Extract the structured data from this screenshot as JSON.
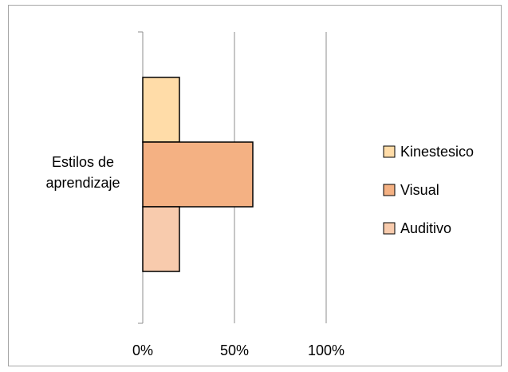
{
  "chart_data": {
    "type": "bar",
    "orientation": "horizontal",
    "categories": [
      "Estilos de aprendizaje"
    ],
    "series": [
      {
        "name": "Kinestesico",
        "color": "#FFDCA8",
        "values": [
          20
        ]
      },
      {
        "name": "Visual",
        "color": "#F4B183",
        "values": [
          60
        ]
      },
      {
        "name": "Auditivo",
        "color": "#F8CBAD",
        "values": [
          20
        ]
      }
    ],
    "xlim": [
      0,
      100
    ],
    "xticks": [
      {
        "value": 0,
        "label": "0%"
      },
      {
        "value": 50,
        "label": "50%"
      },
      {
        "value": 100,
        "label": "100%"
      }
    ],
    "grid": true,
    "legend": "right"
  }
}
